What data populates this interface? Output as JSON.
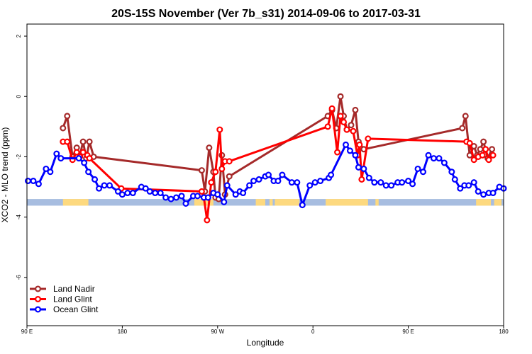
{
  "chart_data": {
    "type": "line",
    "title": "20S-15S November (Ver 7b_s31)   2014-09-06 to 2017-03-31",
    "xlabel": "Longitude",
    "ylabel": "XCO2 - MLO trend (ppm)",
    "xlim": [
      90,
      540
    ],
    "ylim": [
      -7.6,
      2.4
    ],
    "x_ticks": [
      {
        "value": 90,
        "label": "90 E"
      },
      {
        "value": 180,
        "label": "180"
      },
      {
        "value": 270,
        "label": "90 W"
      },
      {
        "value": 360,
        "label": "0"
      },
      {
        "value": 450,
        "label": "90 E"
      },
      {
        "value": 540,
        "label": "180"
      }
    ],
    "y_ticks": [
      {
        "value": 2,
        "label": "2"
      },
      {
        "value": 0,
        "label": "0"
      },
      {
        "value": -2,
        "label": "-2"
      },
      {
        "value": -4,
        "label": "-4"
      },
      {
        "value": -6,
        "label": "-6"
      }
    ],
    "legend_position": "bottom-left",
    "surface_band": {
      "y_range": [
        -3.62,
        -3.4
      ],
      "ocean_color": "#a7bde0",
      "land_color": "#fdd97f",
      "land_segments": [
        [
          124,
          148
        ],
        [
          248,
          266
        ],
        [
          306,
          315
        ],
        [
          319,
          322
        ],
        [
          324,
          347
        ],
        [
          372,
          412
        ],
        [
          419,
          422
        ],
        [
          514,
          528
        ],
        [
          531,
          538
        ]
      ]
    },
    "series": [
      {
        "name": "Land Nadir",
        "color": "#a52a2a",
        "x": [
          124,
          128,
          133,
          137,
          140,
          143,
          146,
          149,
          153,
          255,
          258,
          262,
          266,
          268,
          271,
          274,
          277,
          281,
          374,
          378,
          382,
          386,
          389,
          392,
          396,
          400,
          403,
          408,
          501,
          504,
          508,
          512,
          515,
          518,
          521,
          525,
          529
        ],
        "y": [
          -1.05,
          -0.65,
          -2.0,
          -1.7,
          -1.95,
          -1.5,
          -2.05,
          -1.5,
          -2.0,
          -2.45,
          -3.15,
          -1.7,
          -2.5,
          -3.35,
          -3.4,
          -1.95,
          -3.25,
          -2.65,
          -0.65,
          -0.45,
          -1.05,
          0.0,
          -0.65,
          -1.1,
          -0.95,
          -0.45,
          -1.5,
          -1.75,
          -1.05,
          -0.65,
          -1.95,
          -1.65,
          -1.95,
          -1.75,
          -1.5,
          -2.05,
          -1.75
        ]
      },
      {
        "name": "Land Glint",
        "color": "#ff0000",
        "x": [
          124,
          128,
          133,
          137,
          140,
          143,
          147,
          149,
          179,
          255,
          257,
          260,
          264,
          268,
          272,
          274,
          277,
          281,
          374,
          378,
          383,
          386,
          389,
          392,
          398,
          402,
          404,
          406,
          412,
          505,
          508,
          512,
          516,
          520,
          523,
          526,
          530
        ],
        "y": [
          -1.5,
          -1.5,
          -2.1,
          -1.85,
          -2.0,
          -1.85,
          -1.95,
          -2.05,
          -3.05,
          -3.15,
          -3.35,
          -4.1,
          -2.85,
          -2.5,
          -1.1,
          -2.4,
          -2.15,
          -2.15,
          -1.0,
          -0.4,
          -1.85,
          -0.65,
          -0.85,
          -1.1,
          -1.15,
          -1.95,
          -1.6,
          -2.75,
          -1.4,
          -1.5,
          -1.55,
          -2.1,
          -2.0,
          -1.95,
          -1.75,
          -2.1,
          -1.95
        ]
      },
      {
        "name": "Ocean Glint",
        "color": "#0000ff",
        "x": [
          91,
          96,
          101,
          108,
          112,
          118,
          122,
          139,
          144,
          148,
          154,
          158,
          163,
          168,
          176,
          180,
          185,
          190,
          198,
          202,
          206,
          211,
          216,
          221,
          226,
          231,
          236,
          240,
          247,
          251,
          257,
          261,
          266,
          270,
          276,
          279,
          287,
          291,
          294,
          300,
          304,
          309,
          315,
          318,
          323,
          327,
          331,
          340,
          345,
          350,
          357,
          362,
          367,
          375,
          377,
          391,
          395,
          400,
          403,
          408,
          413,
          418,
          424,
          429,
          434,
          440,
          444,
          450,
          454,
          459,
          464,
          469,
          474,
          479,
          484,
          491,
          494,
          499,
          503,
          507,
          512,
          516,
          521,
          526,
          530,
          536,
          540
        ],
        "y": [
          -2.8,
          -2.8,
          -2.9,
          -2.4,
          -2.5,
          -1.9,
          -2.05,
          -2.05,
          -2.2,
          -2.5,
          -2.75,
          -3.05,
          -2.95,
          -2.95,
          -3.15,
          -3.25,
          -3.2,
          -3.2,
          -3.0,
          -3.05,
          -3.15,
          -3.2,
          -3.2,
          -3.35,
          -3.4,
          -3.35,
          -3.3,
          -3.55,
          -3.3,
          -3.3,
          -3.35,
          -3.35,
          -3.2,
          -3.25,
          -3.5,
          -2.95,
          -3.25,
          -3.15,
          -3.2,
          -2.95,
          -2.8,
          -2.75,
          -2.65,
          -2.6,
          -2.8,
          -2.8,
          -2.6,
          -2.85,
          -2.85,
          -3.6,
          -2.95,
          -2.85,
          -2.8,
          -2.7,
          -2.6,
          -1.6,
          -1.8,
          -1.95,
          -2.35,
          -2.4,
          -2.7,
          -2.85,
          -2.85,
          -2.95,
          -2.95,
          -2.85,
          -2.85,
          -2.8,
          -2.9,
          -2.4,
          -2.5,
          -1.95,
          -2.05,
          -2.05,
          -2.2,
          -2.5,
          -2.75,
          -3.05,
          -2.95,
          -2.95,
          -2.85,
          -3.15,
          -3.25,
          -3.2,
          -3.2,
          -3.0,
          -3.05
        ]
      }
    ]
  }
}
